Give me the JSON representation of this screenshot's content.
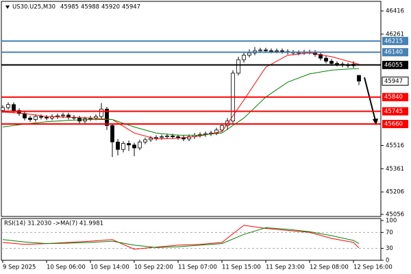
{
  "chart_data": {
    "type": "candlestick",
    "symbol": "US30.U25,M30",
    "open": [
      45750,
      45770,
      45790,
      45750,
      45730,
      45700,
      45690,
      45710,
      45705,
      45700,
      45710,
      45715,
      45720,
      45705,
      45700,
      45680,
      45695,
      45700,
      45710,
      45760,
      45650,
      45540,
      45490,
      45530,
      45520,
      45500,
      45540,
      45555,
      45565,
      45570,
      45575,
      45580,
      45575,
      45570,
      45560,
      45575,
      45585,
      45590,
      45595,
      45600,
      45620,
      45650,
      45680,
      46000,
      46090,
      46120,
      46135,
      46150,
      46155,
      46150,
      46148,
      46150,
      46145,
      46140,
      46135,
      46138,
      46142,
      46140,
      46125,
      46100,
      46080,
      46065,
      46060,
      46055,
      46050,
      45985
    ],
    "high": [
      45785,
      45805,
      45805,
      45765,
      45745,
      45715,
      45725,
      45725,
      45720,
      45725,
      45730,
      45735,
      45735,
      45720,
      45715,
      45710,
      45715,
      45725,
      45800,
      45775,
      45665,
      45560,
      45545,
      45550,
      45535,
      45555,
      45570,
      45580,
      45585,
      45590,
      45595,
      45595,
      45590,
      45585,
      45590,
      45600,
      45605,
      45610,
      45615,
      45635,
      45665,
      45700,
      46020,
      46110,
      46140,
      46160,
      46175,
      46170,
      46170,
      46165,
      46165,
      46165,
      46160,
      46155,
      46153,
      46157,
      46157,
      46155,
      46140,
      46115,
      46095,
      46080,
      46075,
      46070,
      46080,
      45988
    ],
    "low": [
      45735,
      45755,
      45735,
      45715,
      45685,
      45675,
      45675,
      45690,
      45685,
      45685,
      45695,
      45700,
      45690,
      45685,
      45665,
      45665,
      45680,
      45685,
      45695,
      45620,
      45440,
      45450,
      45470,
      45480,
      45445,
      45485,
      45525,
      45540,
      45550,
      45555,
      45560,
      45560,
      45555,
      45545,
      45545,
      45560,
      45570,
      45575,
      45580,
      45585,
      45605,
      45620,
      45665,
      45985,
      46070,
      46105,
      46120,
      46135,
      46135,
      46133,
      46133,
      46130,
      46125,
      46120,
      46120,
      46123,
      46125,
      46110,
      46085,
      46065,
      46050,
      46045,
      46040,
      46035,
      46035,
      45920
    ],
    "close": [
      45770,
      45790,
      45750,
      45730,
      45700,
      45690,
      45710,
      45705,
      45700,
      45710,
      45715,
      45720,
      45705,
      45700,
      45680,
      45695,
      45700,
      45710,
      45760,
      45650,
      45540,
      45490,
      45530,
      45520,
      45500,
      45540,
      45555,
      45565,
      45570,
      45575,
      45580,
      45575,
      45570,
      45560,
      45575,
      45585,
      45590,
      45595,
      45600,
      45620,
      45650,
      45680,
      46000,
      46090,
      46120,
      46135,
      46150,
      46155,
      46150,
      46148,
      46150,
      46145,
      46140,
      46135,
      46138,
      46142,
      46140,
      46125,
      46100,
      46080,
      46065,
      46060,
      46055,
      46050,
      46060,
      45947
    ],
    "ma_x": [
      0,
      4,
      8,
      12,
      16,
      20,
      24,
      28,
      32,
      36,
      40,
      44,
      48,
      52,
      56,
      60,
      64,
      65
    ],
    "series": [
      {
        "color": "#ff0000",
        "values": [
          45740,
          45730,
          45710,
          45705,
          45700,
          45690,
          45600,
          45560,
          45565,
          45580,
          45610,
          45820,
          46040,
          46120,
          46135,
          46110,
          46070,
          46060
        ]
      },
      {
        "color": "#008000",
        "values": [
          45640,
          45660,
          45675,
          45685,
          45690,
          45690,
          45640,
          45600,
          45585,
          45585,
          45600,
          45700,
          45840,
          45940,
          45995,
          46020,
          46030,
          46030
        ]
      }
    ],
    "levels": [
      {
        "value": 46215,
        "color": "#4682b4"
      },
      {
        "value": 46140,
        "color": "#4682b4"
      },
      {
        "value": 46055,
        "color": "#000000"
      },
      {
        "value": 45840,
        "color": "#ff0000"
      },
      {
        "value": 45745,
        "color": "#ff0000"
      },
      {
        "value": 45660,
        "color": "#ff0000"
      }
    ],
    "ylim": [
      45042,
      46480
    ],
    "yticks": [
      46416,
      46261,
      45516,
      45361,
      45206,
      45056
    ],
    "xlim": [
      -0.25,
      69
    ],
    "xticks": [
      {
        "value": 0,
        "label": "9 Sep 2025"
      },
      {
        "value": 8,
        "label": "10 Sep 06:00"
      },
      {
        "value": 16,
        "label": "10 Sep 14:00"
      },
      {
        "value": 24,
        "label": "10 Sep 22:00"
      },
      {
        "value": 32,
        "label": "11 Sep 07:00"
      },
      {
        "value": 40,
        "label": "11 Sep 15:00"
      },
      {
        "value": 48,
        "label": "11 Sep 23:00"
      },
      {
        "value": 56,
        "label": "12 Sep 08:00"
      },
      {
        "value": 64,
        "label": "12 Sep 16:00"
      }
    ],
    "rsi": {
      "title": "RSI(14) 31.2030 ->MA(7) 41.9981",
      "series": [
        {
          "color": "#ff0000",
          "values": [
            45,
            40,
            42,
            45,
            48,
            52,
            28,
            33,
            38,
            40,
            45,
            88,
            80,
            75,
            70,
            55,
            45,
            31.203
          ]
        },
        {
          "color": "#008000",
          "values": [
            52,
            46,
            42,
            43,
            45,
            48,
            38,
            32,
            34,
            38,
            42,
            65,
            82,
            78,
            72,
            62,
            50,
            41.9981
          ]
        }
      ],
      "ylim": [
        0,
        105
      ],
      "yticks": [
        100,
        70,
        30,
        0
      ],
      "levels": [
        70,
        30
      ]
    }
  }
}
